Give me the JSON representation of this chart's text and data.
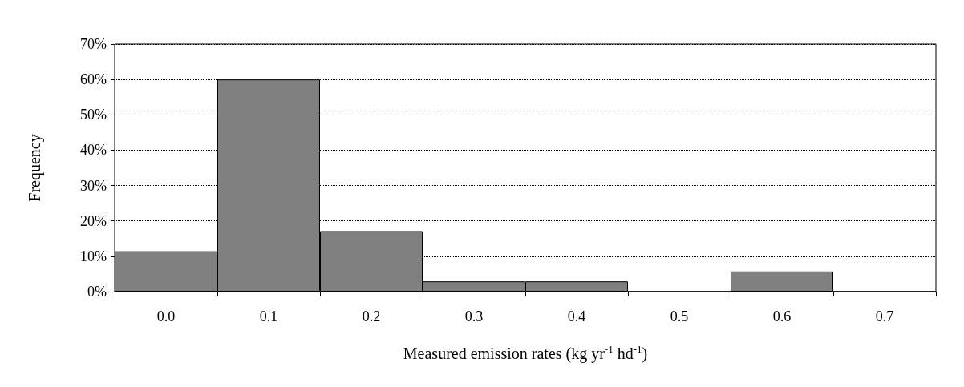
{
  "chart_data": {
    "type": "bar",
    "xlabel": "Measured emission rates (kg yr$^{-1}$ hd$^{-1}$)",
    "ylabel": "Frequency",
    "categories": [
      "0.0",
      "0.1",
      "0.2",
      "0.3",
      "0.4",
      "0.5",
      "0.6",
      "0.7"
    ],
    "values": [
      11.4,
      60,
      17.1,
      2.9,
      2.9,
      0,
      5.7,
      0
    ],
    "color": "#808080",
    "ylim": [
      0,
      70
    ],
    "yticks": [
      {
        "value": 0,
        "label": "0%"
      },
      {
        "value": 10,
        "label": "10%"
      },
      {
        "value": 20,
        "label": "20%"
      },
      {
        "value": 30,
        "label": "30%"
      },
      {
        "value": 40,
        "label": "40%"
      },
      {
        "value": 50,
        "label": "50%"
      },
      {
        "value": 60,
        "label": "60%"
      },
      {
        "value": 70,
        "label": "70%"
      }
    ],
    "grid": "y"
  }
}
